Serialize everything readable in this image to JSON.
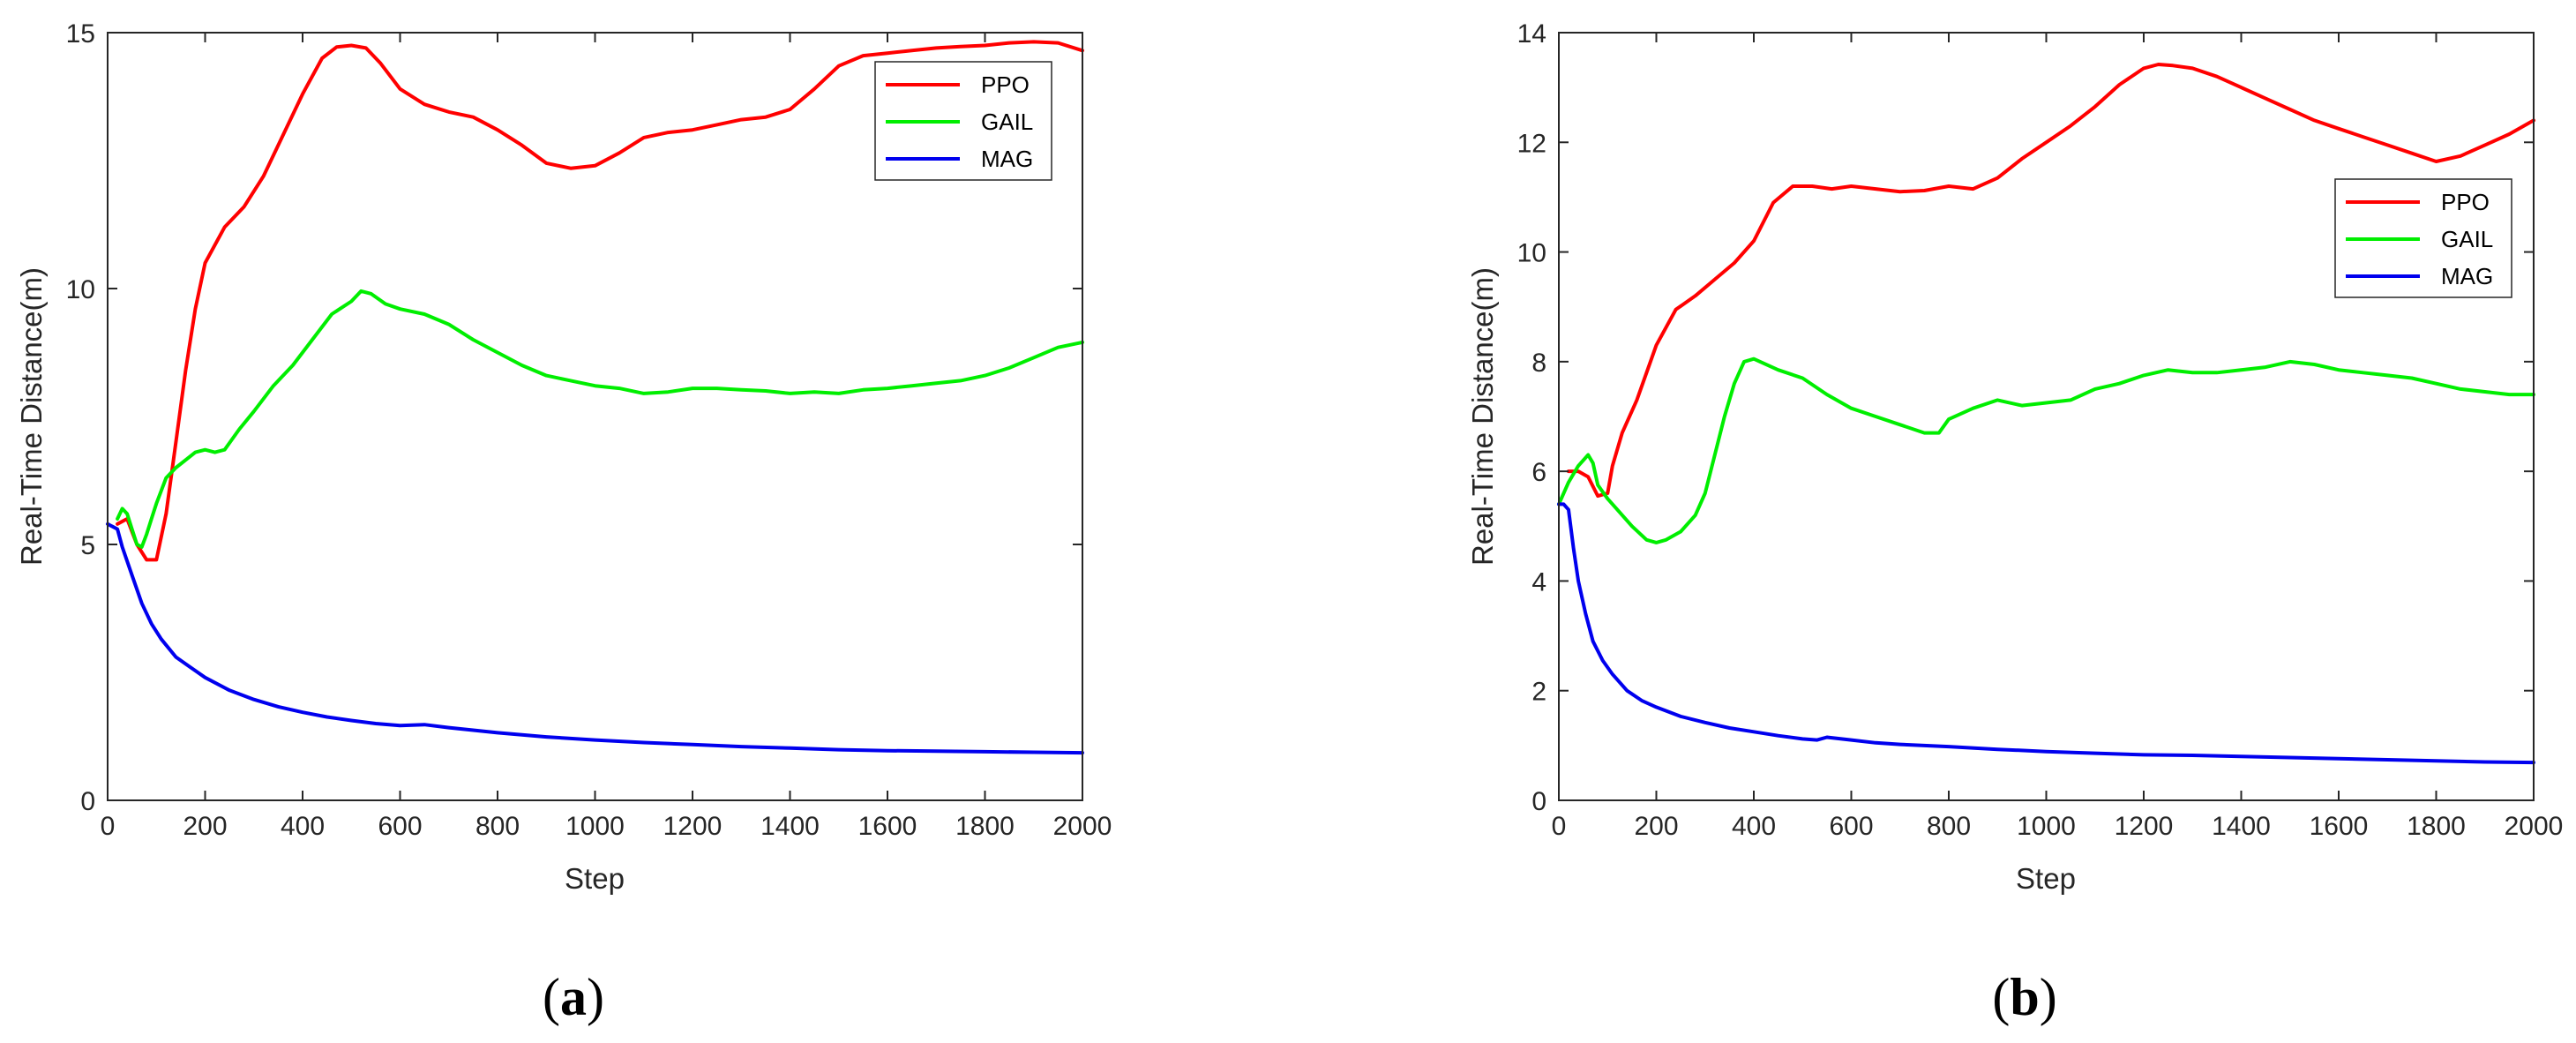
{
  "chart_data": [
    {
      "type": "line",
      "panel_label": "a",
      "caption_open": "(",
      "caption_close": ")",
      "xlabel": "Step",
      "ylabel": "Real-Time Distance(m)",
      "xlim": [
        0,
        2000
      ],
      "ylim": [
        0,
        15
      ],
      "xticks": [
        0,
        200,
        400,
        600,
        800,
        1000,
        1200,
        1400,
        1600,
        1800,
        2000
      ],
      "yticks": [
        0,
        5,
        10,
        15
      ],
      "grid": false,
      "legend_position": "top-right",
      "series": [
        {
          "name": "PPO",
          "color": "#ff0000",
          "x": [
            20,
            40,
            60,
            80,
            100,
            120,
            140,
            160,
            180,
            200,
            240,
            280,
            320,
            360,
            400,
            440,
            470,
            500,
            530,
            560,
            600,
            650,
            700,
            750,
            800,
            850,
            900,
            950,
            1000,
            1050,
            1100,
            1150,
            1200,
            1250,
            1300,
            1350,
            1400,
            1450,
            1500,
            1550,
            1600,
            1650,
            1700,
            1750,
            1800,
            1850,
            1900,
            1950,
            2000
          ],
          "y": [
            5.4,
            5.5,
            5.0,
            4.7,
            4.7,
            5.6,
            7.0,
            8.4,
            9.6,
            10.5,
            11.2,
            11.6,
            12.2,
            13.0,
            13.8,
            14.5,
            14.72,
            14.75,
            14.7,
            14.4,
            13.9,
            13.6,
            13.45,
            13.35,
            13.1,
            12.8,
            12.45,
            12.35,
            12.4,
            12.65,
            12.95,
            13.05,
            13.1,
            13.2,
            13.3,
            13.35,
            13.5,
            13.9,
            14.35,
            14.55,
            14.6,
            14.65,
            14.7,
            14.73,
            14.75,
            14.8,
            14.82,
            14.8,
            14.65
          ]
        },
        {
          "name": "GAIL",
          "color": "#00ee00",
          "x": [
            20,
            30,
            40,
            50,
            60,
            70,
            80,
            90,
            100,
            120,
            140,
            160,
            180,
            200,
            220,
            240,
            270,
            300,
            340,
            380,
            420,
            460,
            500,
            520,
            540,
            570,
            600,
            650,
            700,
            750,
            800,
            850,
            900,
            950,
            1000,
            1050,
            1100,
            1150,
            1200,
            1250,
            1300,
            1350,
            1400,
            1450,
            1500,
            1550,
            1600,
            1650,
            1700,
            1750,
            1800,
            1850,
            1900,
            1950,
            2000
          ],
          "y": [
            5.5,
            5.7,
            5.6,
            5.3,
            5.0,
            4.95,
            5.2,
            5.5,
            5.8,
            6.3,
            6.5,
            6.65,
            6.8,
            6.85,
            6.8,
            6.85,
            7.25,
            7.6,
            8.1,
            8.5,
            9.0,
            9.5,
            9.75,
            9.95,
            9.9,
            9.7,
            9.6,
            9.5,
            9.3,
            9.0,
            8.75,
            8.5,
            8.3,
            8.2,
            8.1,
            8.05,
            7.95,
            7.98,
            8.05,
            8.05,
            8.02,
            8.0,
            7.95,
            7.98,
            7.95,
            8.02,
            8.05,
            8.1,
            8.15,
            8.2,
            8.3,
            8.45,
            8.65,
            8.85,
            8.95
          ]
        },
        {
          "name": "MAG",
          "color": "#0000ee",
          "x": [
            0,
            10,
            20,
            30,
            50,
            70,
            90,
            110,
            140,
            170,
            200,
            250,
            300,
            350,
            400,
            450,
            500,
            550,
            600,
            650,
            700,
            800,
            900,
            1000,
            1100,
            1200,
            1300,
            1400,
            1500,
            1600,
            1700,
            1800,
            1900,
            2000
          ],
          "y": [
            5.4,
            5.35,
            5.3,
            4.95,
            4.4,
            3.85,
            3.45,
            3.15,
            2.8,
            2.6,
            2.4,
            2.15,
            1.97,
            1.83,
            1.72,
            1.63,
            1.56,
            1.5,
            1.46,
            1.48,
            1.42,
            1.32,
            1.24,
            1.18,
            1.13,
            1.09,
            1.05,
            1.02,
            0.99,
            0.97,
            0.96,
            0.95,
            0.94,
            0.93
          ]
        }
      ]
    },
    {
      "type": "line",
      "panel_label": "b",
      "caption_open": "(",
      "caption_close": ")",
      "xlabel": "Step",
      "ylabel": "Real-Time Distance(m)",
      "xlim": [
        0,
        2000
      ],
      "ylim": [
        0,
        14
      ],
      "xticks": [
        0,
        200,
        400,
        600,
        800,
        1000,
        1200,
        1400,
        1600,
        1800,
        2000
      ],
      "yticks": [
        0,
        2,
        4,
        6,
        8,
        10,
        12,
        14
      ],
      "grid": false,
      "legend_position": "upper-right",
      "series": [
        {
          "name": "PPO",
          "color": "#ff0000",
          "x": [
            20,
            40,
            60,
            80,
            100,
            110,
            130,
            160,
            200,
            240,
            280,
            320,
            360,
            400,
            440,
            480,
            520,
            560,
            600,
            650,
            700,
            750,
            800,
            850,
            900,
            950,
            1000,
            1050,
            1100,
            1150,
            1200,
            1230,
            1260,
            1300,
            1350,
            1400,
            1450,
            1500,
            1550,
            1600,
            1650,
            1700,
            1750,
            1800,
            1850,
            1900,
            1950,
            2000
          ],
          "y": [
            6.0,
            6.0,
            5.9,
            5.55,
            5.6,
            6.1,
            6.7,
            7.3,
            8.3,
            8.95,
            9.2,
            9.5,
            9.8,
            10.2,
            10.9,
            11.2,
            11.2,
            11.15,
            11.2,
            11.15,
            11.1,
            11.12,
            11.2,
            11.15,
            11.35,
            11.7,
            12.0,
            12.3,
            12.65,
            13.05,
            13.35,
            13.42,
            13.4,
            13.35,
            13.2,
            13.0,
            12.8,
            12.6,
            12.4,
            12.25,
            12.1,
            11.95,
            11.8,
            11.65,
            11.75,
            11.95,
            12.15,
            12.4
          ]
        },
        {
          "name": "GAIL",
          "color": "#00ee00",
          "x": [
            0,
            20,
            40,
            60,
            70,
            80,
            100,
            120,
            150,
            180,
            200,
            220,
            250,
            280,
            300,
            320,
            340,
            360,
            380,
            400,
            450,
            500,
            550,
            600,
            650,
            700,
            750,
            780,
            800,
            850,
            900,
            950,
            1000,
            1050,
            1100,
            1150,
            1200,
            1250,
            1300,
            1350,
            1400,
            1450,
            1500,
            1550,
            1600,
            1650,
            1700,
            1750,
            1800,
            1850,
            1900,
            1950,
            2000
          ],
          "y": [
            5.4,
            5.8,
            6.1,
            6.3,
            6.15,
            5.75,
            5.5,
            5.3,
            5.0,
            4.75,
            4.7,
            4.75,
            4.9,
            5.2,
            5.6,
            6.3,
            7.0,
            7.6,
            8.0,
            8.05,
            7.85,
            7.7,
            7.4,
            7.15,
            7.0,
            6.85,
            6.7,
            6.7,
            6.95,
            7.15,
            7.3,
            7.2,
            7.25,
            7.3,
            7.5,
            7.6,
            7.75,
            7.85,
            7.8,
            7.8,
            7.85,
            7.9,
            8.0,
            7.95,
            7.85,
            7.8,
            7.75,
            7.7,
            7.6,
            7.5,
            7.45,
            7.4,
            7.4
          ]
        },
        {
          "name": "MAG",
          "color": "#0000ee",
          "x": [
            0,
            10,
            20,
            30,
            40,
            55,
            70,
            90,
            110,
            140,
            170,
            200,
            250,
            300,
            350,
            400,
            450,
            500,
            530,
            550,
            600,
            650,
            700,
            800,
            900,
            1000,
            1100,
            1200,
            1300,
            1400,
            1500,
            1600,
            1700,
            1800,
            1900,
            2000
          ],
          "y": [
            5.4,
            5.4,
            5.3,
            4.6,
            4.0,
            3.4,
            2.9,
            2.55,
            2.3,
            2.0,
            1.82,
            1.7,
            1.53,
            1.42,
            1.32,
            1.25,
            1.18,
            1.12,
            1.1,
            1.15,
            1.1,
            1.05,
            1.02,
            0.98,
            0.93,
            0.89,
            0.86,
            0.83,
            0.82,
            0.8,
            0.78,
            0.76,
            0.74,
            0.72,
            0.7,
            0.69
          ]
        }
      ]
    }
  ]
}
